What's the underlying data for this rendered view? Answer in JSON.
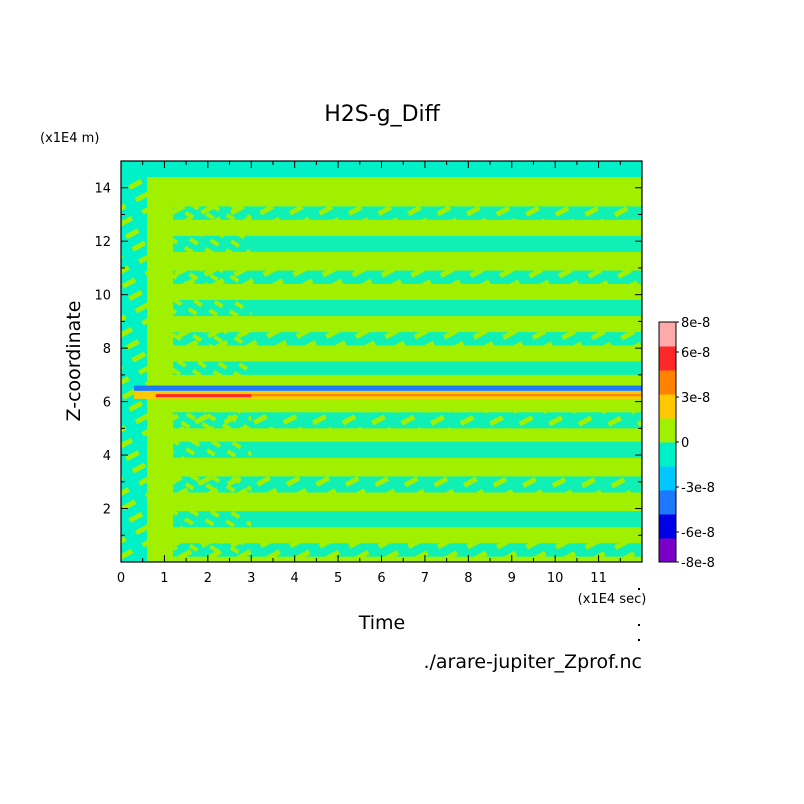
{
  "chart_data": {
    "type": "heatmap",
    "title": "H2S-g_Diff",
    "xlabel": "Time",
    "ylabel": "Z-coordinate",
    "x_unit": "(x1E4 sec)",
    "y_unit": "(x1E4 m)",
    "source": "./arare-jupiter_Zprof.nc",
    "xlim": [
      0,
      12
    ],
    "ylim": [
      0,
      15
    ],
    "x_ticks": [
      0,
      1,
      2,
      3,
      4,
      5,
      6,
      7,
      8,
      9,
      10,
      11
    ],
    "y_ticks": [
      2,
      4,
      6,
      8,
      10,
      12,
      14
    ],
    "colorbar": {
      "levels": [
        {
          "value": "-8e-8",
          "color": "#7a00c8"
        },
        {
          "value": "-6e-8",
          "color": "#0000e6"
        },
        {
          "value": "-3e-8",
          "color": "#1e78ff"
        },
        {
          "value": "0",
          "color": "#00f0c8"
        },
        {
          "value": "3e-8",
          "color": "#a0f000"
        },
        {
          "value": "6e-8",
          "color": "#ffc800"
        },
        {
          "value": "8e-8",
          "color": "#ff2828"
        }
      ],
      "band_colors": [
        "#7a00c8",
        "#0000e6",
        "#1e78ff",
        "#00c8ff",
        "#00f0c8",
        "#a0f000",
        "#ffc800",
        "#ff8200",
        "#ff2828",
        "#ffaaaa"
      ],
      "tick_labels": [
        "8e-8",
        "6e-8",
        "3e-8",
        "0",
        "-3e-8",
        "-6e-8",
        "-8e-8"
      ],
      "tick_fractions": [
        1.0,
        0.875,
        0.6875,
        0.5,
        0.3125,
        0.125,
        0.0
      ]
    },
    "features": {
      "background_value": "0",
      "positive_band_z": [
        6.1,
        6.4
      ],
      "negative_band_z": [
        6.4,
        6.6
      ],
      "top_cutoff_z": 14.4
    }
  }
}
